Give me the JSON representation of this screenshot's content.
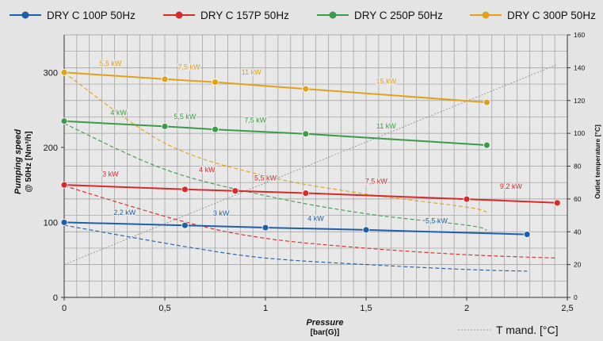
{
  "chart_data": {
    "type": "line",
    "xlabel": "Pressure",
    "xlabel_unit": "[bar(G)]",
    "ylabel": "Pumping speed",
    "ylabel_2": "@ 50Hz [Nm³/h]",
    "y2label": "Outlet temperature [°C]",
    "xlim": [
      0,
      2.5
    ],
    "ylim": [
      0,
      350
    ],
    "y2lim": [
      0,
      160
    ],
    "x_ticks": [
      0,
      0.5,
      1,
      1.5,
      2,
      2.5
    ],
    "x_tick_labels": [
      "0",
      "0,5",
      "1",
      "1,5",
      "2",
      "2,5"
    ],
    "y_ticks": [
      0,
      100,
      200,
      300
    ],
    "y2_ticks": [
      0,
      20,
      40,
      60,
      80,
      100,
      120,
      140,
      160
    ],
    "grid": true,
    "legend_position": "top",
    "series": [
      {
        "name": "DRY C 100P 50Hz",
        "color": "#1f5fa8",
        "x": [
          0,
          0.6,
          1,
          1.5,
          2.3
        ],
        "y": [
          100,
          96,
          93,
          90,
          84
        ],
        "temp_x": [
          0,
          0.6,
          1,
          1.5,
          2,
          2.3
        ],
        "temp_y": [
          44,
          31,
          24,
          20,
          17,
          16
        ],
        "power_labels": [
          {
            "x": 0.3,
            "y": 110,
            "text": "2,2 kW"
          },
          {
            "x": 0.78,
            "y": 109,
            "text": "3 kW"
          },
          {
            "x": 1.25,
            "y": 102,
            "text": "4 kW"
          },
          {
            "x": 1.85,
            "y": 99,
            "text": "5,5 kW"
          }
        ]
      },
      {
        "name": "DRY C 157P 50Hz",
        "color": "#d42b2b",
        "x": [
          0,
          0.6,
          0.85,
          1.2,
          2,
          2.45
        ],
        "y": [
          150,
          144,
          142,
          139,
          131,
          126
        ],
        "temp_x": [
          0,
          0.6,
          1,
          1.5,
          2,
          2.45
        ],
        "temp_y": [
          68,
          46,
          36,
          30,
          26,
          24
        ],
        "power_labels": [
          {
            "x": 0.23,
            "y": 161,
            "text": "3 kW"
          },
          {
            "x": 0.71,
            "y": 167,
            "text": "4 kW"
          },
          {
            "x": 1.0,
            "y": 156,
            "text": "5,5 kW"
          },
          {
            "x": 1.55,
            "y": 152,
            "text": "7,5 kW"
          },
          {
            "x": 2.22,
            "y": 145,
            "text": "9,2 kW"
          }
        ]
      },
      {
        "name": "DRY C 250P 50Hz",
        "color": "#3d9a4a",
        "x": [
          0,
          0.5,
          0.75,
          1.2,
          2.1
        ],
        "y": [
          235,
          228,
          224,
          218,
          203
        ],
        "temp_x": [
          0,
          0.5,
          1,
          1.5,
          2,
          2.1
        ],
        "temp_y": [
          106,
          78,
          62,
          51,
          44,
          41
        ],
        "power_labels": [
          {
            "x": 0.27,
            "y": 243,
            "text": "4 kW"
          },
          {
            "x": 0.6,
            "y": 238,
            "text": "5,5 kW"
          },
          {
            "x": 0.95,
            "y": 233,
            "text": "7,5 kW"
          },
          {
            "x": 1.6,
            "y": 225,
            "text": "11 kW"
          }
        ]
      },
      {
        "name": "DRY C 300P 50Hz",
        "color": "#e0a21c",
        "x": [
          0,
          0.5,
          0.75,
          1.2,
          2.1
        ],
        "y": [
          300,
          291,
          287,
          278,
          260
        ],
        "temp_x": [
          0,
          0.5,
          1,
          1.5,
          2,
          2.1
        ],
        "temp_y": [
          137,
          94,
          74,
          63,
          55,
          52
        ],
        "power_labels": [
          {
            "x": 0.23,
            "y": 309,
            "text": "5,5 kW"
          },
          {
            "x": 0.62,
            "y": 304,
            "text": "7,5 kW"
          },
          {
            "x": 0.93,
            "y": 297,
            "text": "11 kW"
          },
          {
            "x": 1.6,
            "y": 285,
            "text": "15 kW"
          }
        ]
      }
    ],
    "reference_line": {
      "name": "T mand. [°C]",
      "color": "#888888",
      "x": [
        0,
        2.45
      ],
      "y2": [
        20,
        142
      ]
    }
  }
}
